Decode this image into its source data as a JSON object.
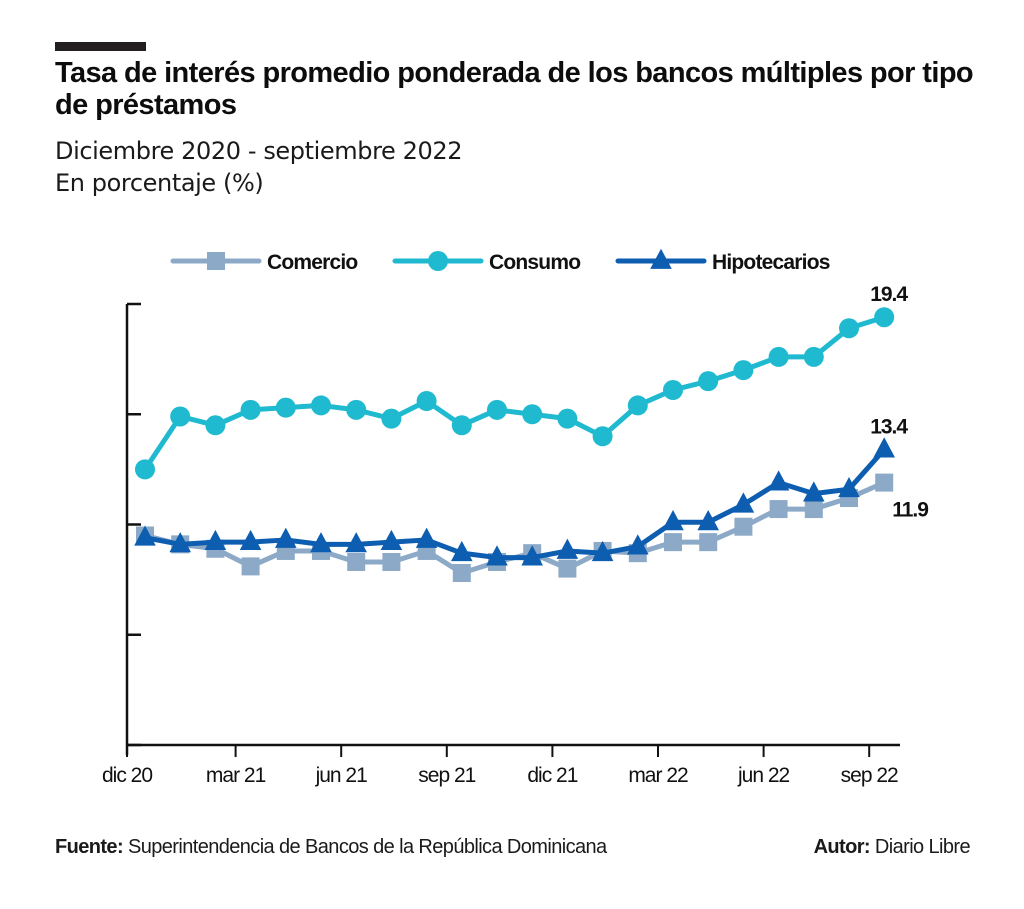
{
  "header": {
    "title": "Tasa de interés promedio ponderada de los bancos múltiples por tipo de préstamos",
    "subtitle": "Diciembre 2020 - septiembre 2022",
    "unit": "En porcentaje (%)"
  },
  "footer": {
    "source_label": "Fuente:",
    "source_text": "Superintendencia de Bancos de la República Dominicana",
    "author_label": "Autor:",
    "author_text": "Diario Libre"
  },
  "chart_data": {
    "type": "line",
    "title": "Tasa de interés promedio ponderada de los bancos múltiples por tipo de préstamos",
    "subtitle": "Diciembre 2020 - septiembre 2022",
    "xlabel": "",
    "ylabel": "En porcentaje (%)",
    "ylim": [
      0,
      20
    ],
    "yticks": [
      0,
      5,
      10,
      15,
      20
    ],
    "ytick_labels_visible": false,
    "grid": false,
    "legend": "top",
    "x": [
      "dic 20",
      "ene 21",
      "feb 21",
      "mar 21",
      "abr 21",
      "may 21",
      "jun 21",
      "jul 21",
      "ago 21",
      "sep 21",
      "oct 21",
      "nov 21",
      "dic 21",
      "ene 22",
      "feb 22",
      "mar 22",
      "abr 22",
      "may 22",
      "jun 22",
      "jul 22",
      "ago 22",
      "sep 22"
    ],
    "xtick_labels": [
      "dic 20",
      "mar 21",
      "jun 21",
      "sep 21",
      "dic 21",
      "mar 22",
      "jun 22",
      "sep 22"
    ],
    "series": [
      {
        "name": "Comercio",
        "color": "#8caac8",
        "marker": "square",
        "values": [
          9.5,
          9.1,
          8.9,
          8.1,
          8.8,
          8.8,
          8.3,
          8.3,
          8.8,
          7.8,
          8.3,
          8.7,
          8.0,
          8.8,
          8.7,
          9.2,
          9.2,
          9.9,
          10.7,
          10.7,
          11.2,
          11.9
        ],
        "end_label": "11.9"
      },
      {
        "name": "Consumo",
        "color": "#1fbad0",
        "marker": "circle",
        "values": [
          12.5,
          14.9,
          14.5,
          15.2,
          15.3,
          15.4,
          15.2,
          14.8,
          15.6,
          14.5,
          15.2,
          15.0,
          14.8,
          14.0,
          15.4,
          16.1,
          16.5,
          17.0,
          17.6,
          17.6,
          18.9,
          19.4
        ],
        "end_label": "19.4"
      },
      {
        "name": "Hipotecarios",
        "color": "#0d5eb0",
        "marker": "triangle",
        "values": [
          9.4,
          9.1,
          9.2,
          9.2,
          9.3,
          9.1,
          9.1,
          9.2,
          9.3,
          8.7,
          8.5,
          8.5,
          8.8,
          8.7,
          9.0,
          10.1,
          10.1,
          10.9,
          11.9,
          11.4,
          11.6,
          13.4
        ],
        "end_label": "13.4"
      }
    ]
  }
}
